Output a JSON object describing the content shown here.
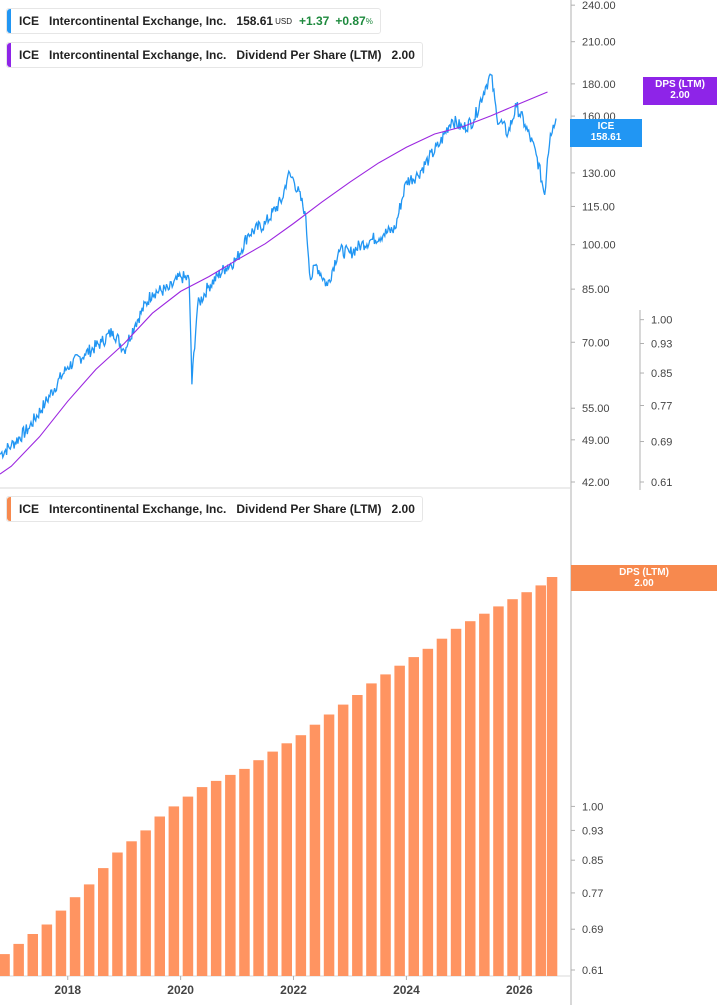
{
  "legends": {
    "price": {
      "ticker": "ICE",
      "name": "Intercontinental Exchange, Inc.",
      "price": "158.61",
      "currency": "USD",
      "change": "+1.37",
      "change_pct": "+0.87",
      "pct_sign": "%"
    },
    "dps_top": {
      "ticker": "ICE",
      "name": "Intercontinental Exchange, Inc.",
      "metric": "Dividend Per Share (LTM)",
      "value": "2.00"
    },
    "dps_bottom": {
      "ticker": "ICE",
      "name": "Intercontinental Exchange, Inc.",
      "metric": "Dividend Per Share (LTM)",
      "value": "2.00"
    }
  },
  "badges": {
    "ice": {
      "label": "ICE",
      "value": "158.61",
      "color": "#2196f3"
    },
    "dps_top": {
      "label": "DPS (LTM)",
      "value": "2.00",
      "color": "#8e24e8"
    },
    "dps_bottom": {
      "label": "DPS (LTM)",
      "value": "2.00",
      "color": "#f7894e"
    }
  },
  "colors": {
    "price_line": "#2196f3",
    "dps_line": "#9c27e0",
    "bars": "#ff9461",
    "axis": "#b0b0b0"
  },
  "chart_data": [
    {
      "type": "line",
      "title": "",
      "y_scale": "log",
      "ylim": [
        42,
        250
      ],
      "y_ticks": [
        "42.00",
        "49.00",
        "55.00",
        "70.00",
        "85.00",
        "100.00",
        "115.00",
        "130.00",
        "145.00",
        "160.00",
        "180.00",
        "210.00",
        "240.00"
      ],
      "y2_scale": "log",
      "y2lim": [
        0.61,
        2.0
      ],
      "y2_ticks": [
        "0.61",
        "0.69",
        "0.77",
        "0.85",
        "0.93",
        "1.00"
      ],
      "xlim": [
        2016.8,
        2026.65
      ],
      "series": [
        {
          "name": "ICE",
          "axis": "left",
          "x": [
            2016.8,
            2017.0,
            2017.3,
            2017.6,
            2018.0,
            2018.3,
            2018.6,
            2018.8,
            2019.0,
            2019.2,
            2019.5,
            2019.8,
            2020.0,
            2020.15,
            2020.2,
            2020.3,
            2020.5,
            2020.8,
            2021.0,
            2021.2,
            2021.5,
            2021.8,
            2021.9,
            2022.0,
            2022.2,
            2022.3,
            2022.4,
            2022.6,
            2022.8,
            2023.0,
            2023.2,
            2023.4,
            2023.6,
            2023.8,
            2024.0,
            2024.2,
            2024.4,
            2024.6,
            2024.8,
            2025.0,
            2025.2,
            2025.4,
            2025.5,
            2025.6,
            2025.8,
            2025.95,
            2026.1,
            2026.3,
            2026.45,
            2026.5,
            2026.55,
            2026.6,
            2026.65
          ],
          "y": [
            46.5,
            48,
            51,
            56,
            64,
            67,
            70,
            73,
            68,
            75,
            84,
            85,
            89,
            88,
            60,
            80,
            86,
            92,
            95,
            104,
            108,
            118,
            129,
            127,
            113,
            88,
            93,
            86,
            98,
            97,
            100,
            102,
            104,
            106,
            126,
            129,
            137,
            145,
            158,
            153,
            158,
            178,
            186,
            160,
            150,
            166,
            155,
            139,
            120,
            137,
            150,
            155,
            158.61
          ]
        },
        {
          "name": "DPS (LTM)",
          "axis": "right",
          "x": [
            2016.8,
            2017.0,
            2017.5,
            2018.0,
            2018.5,
            2019.0,
            2019.5,
            2020.0,
            2020.5,
            2021.0,
            2021.5,
            2022.0,
            2022.5,
            2023.0,
            2023.5,
            2024.0,
            2024.5,
            2025.0,
            2025.5,
            2026.0,
            2026.5
          ],
          "y": [
            0.625,
            0.64,
            0.7,
            0.78,
            0.86,
            0.93,
            1.02,
            1.09,
            1.14,
            1.2,
            1.26,
            1.34,
            1.43,
            1.52,
            1.61,
            1.69,
            1.76,
            1.8,
            1.86,
            1.93,
            2.0
          ]
        }
      ]
    },
    {
      "type": "bar",
      "title": "",
      "y_scale": "log",
      "ylim": [
        0.61,
        2.0
      ],
      "y_ticks": [
        "0.61",
        "0.69",
        "0.77",
        "0.85",
        "0.93",
        "1.00"
      ],
      "x_ticks": [
        "2018",
        "2020",
        "2022",
        "2024",
        "2026"
      ],
      "xlim": [
        2016.8,
        2026.65
      ],
      "series": [
        {
          "name": "DPS (LTM)",
          "x": [
            2016.88,
            2017.13,
            2017.38,
            2017.63,
            2017.88,
            2018.13,
            2018.38,
            2018.63,
            2018.88,
            2019.13,
            2019.38,
            2019.63,
            2019.88,
            2020.13,
            2020.38,
            2020.63,
            2020.88,
            2021.13,
            2021.38,
            2021.63,
            2021.88,
            2022.13,
            2022.38,
            2022.63,
            2022.88,
            2023.13,
            2023.38,
            2023.63,
            2023.88,
            2024.13,
            2024.38,
            2024.63,
            2024.88,
            2025.13,
            2025.38,
            2025.63,
            2025.88,
            2026.13,
            2026.38,
            2026.58
          ],
          "values": [
            0.64,
            0.66,
            0.68,
            0.7,
            0.73,
            0.76,
            0.79,
            0.83,
            0.87,
            0.9,
            0.93,
            0.97,
            1.0,
            1.03,
            1.06,
            1.08,
            1.1,
            1.12,
            1.15,
            1.18,
            1.21,
            1.24,
            1.28,
            1.32,
            1.36,
            1.4,
            1.45,
            1.49,
            1.53,
            1.57,
            1.61,
            1.66,
            1.71,
            1.75,
            1.79,
            1.83,
            1.87,
            1.91,
            1.95,
            2.0
          ]
        }
      ]
    }
  ]
}
